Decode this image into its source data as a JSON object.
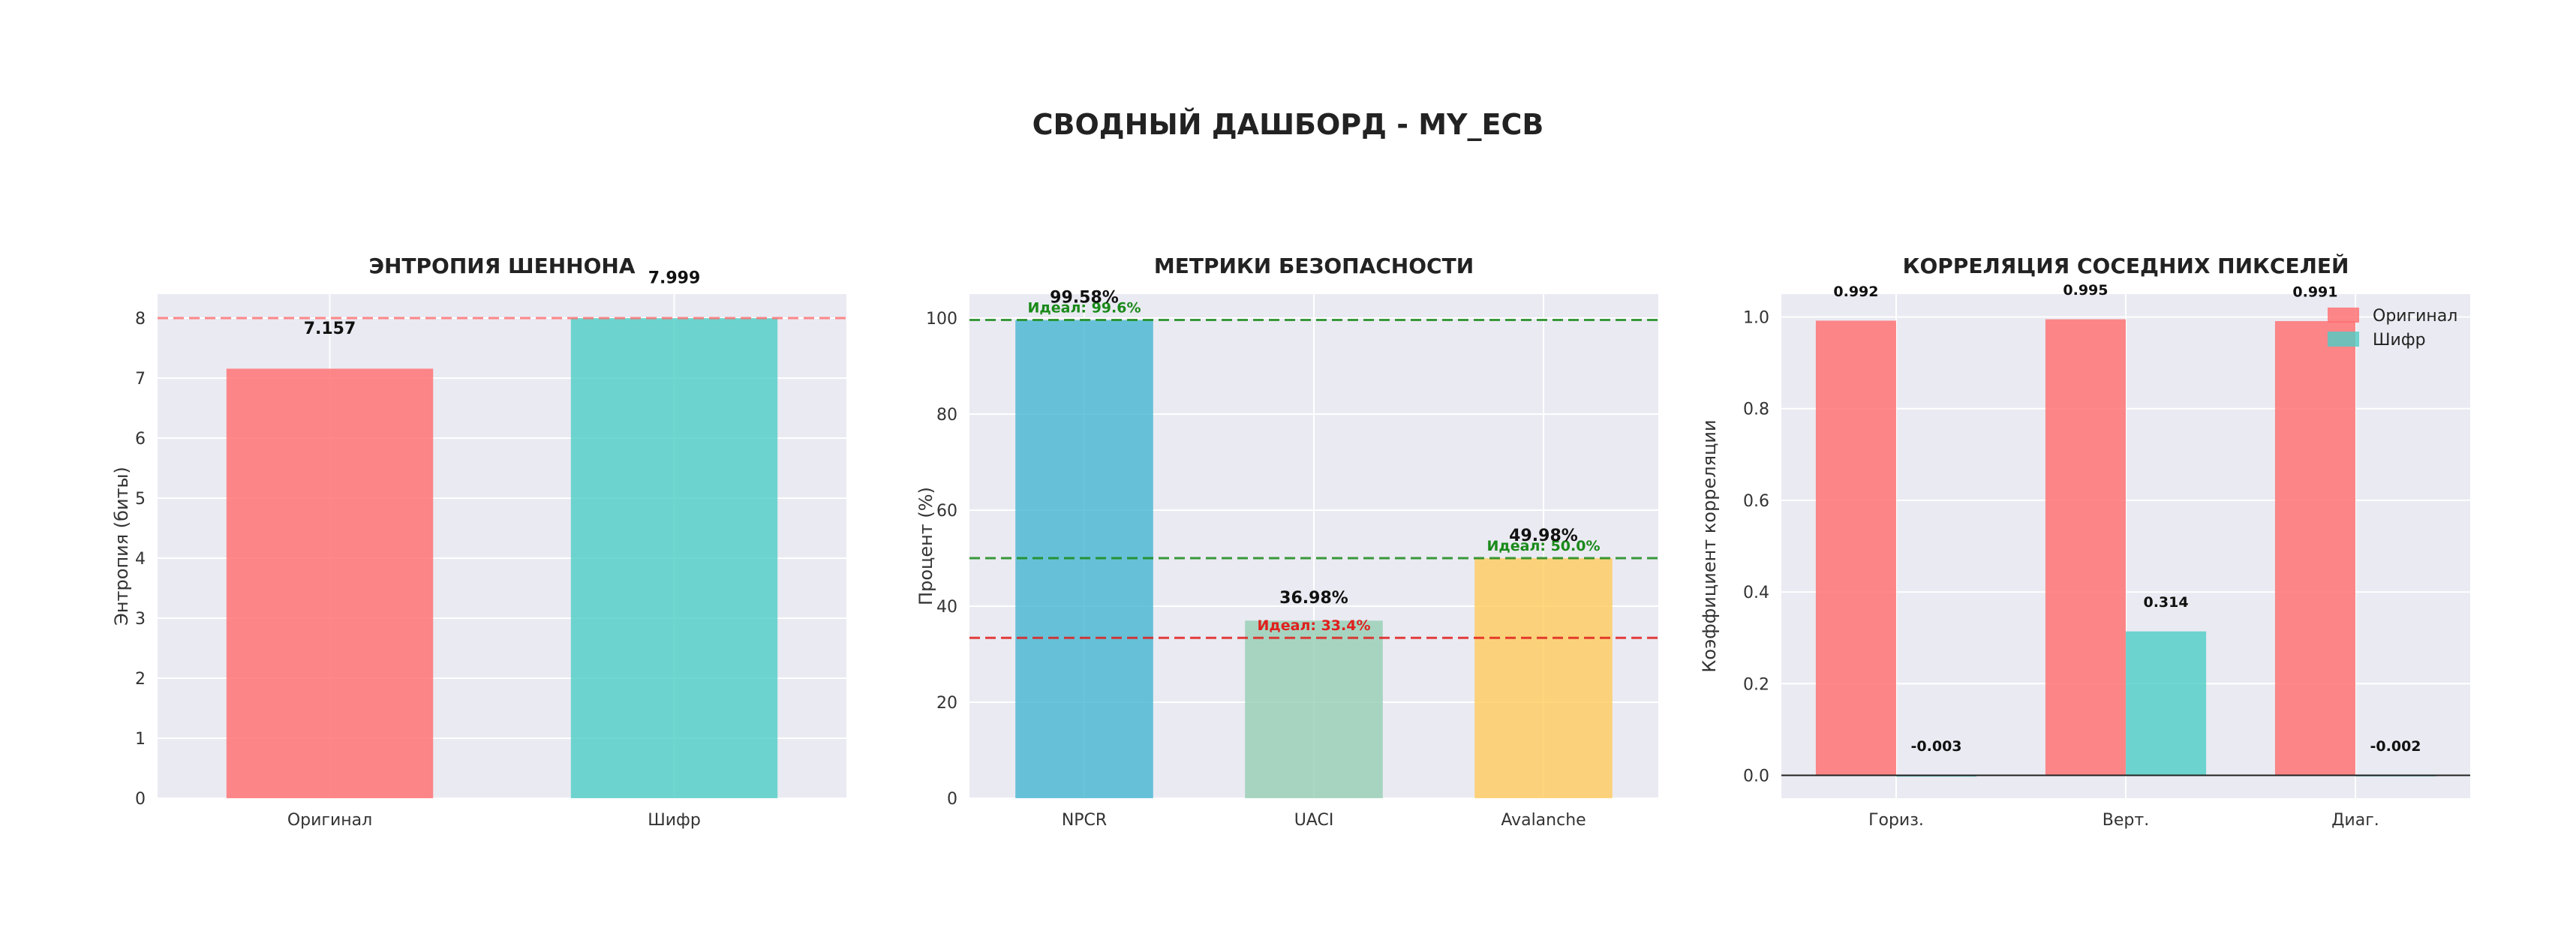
{
  "suptitle": "СВОДНЫЙ ДАШБОРД - MY_ECB",
  "chart_data": [
    {
      "type": "bar",
      "title": "ЭНТРОПИЯ ШЕННОНА",
      "ylabel": "Энтропия (биты)",
      "xlabel": "",
      "categories": [
        "Оригинал",
        "Шифр"
      ],
      "values": [
        7.157,
        7.999
      ],
      "value_labels": [
        "7.157",
        "7.999"
      ],
      "colors": [
        "#FF6B6B",
        "#4ECDC4"
      ],
      "ylim": [
        0,
        8.4
      ],
      "yticks": [
        "0",
        "1",
        "2",
        "3",
        "4",
        "5",
        "6",
        "7",
        "8"
      ],
      "reference_lines": [
        {
          "value": 8,
          "color": "#FF6B6B",
          "label": ""
        }
      ],
      "grid": true
    },
    {
      "type": "bar",
      "title": "МЕТРИКИ БЕЗОПАСНОСТИ",
      "ylabel": "Процент (%)",
      "xlabel": "",
      "categories": [
        "NPCR",
        "UACI",
        "Avalanche"
      ],
      "values": [
        99.58,
        36.98,
        49.98
      ],
      "value_labels": [
        "99.58%",
        "36.98%",
        "49.98%"
      ],
      "colors": [
        "#45B7D1",
        "#96CEB4",
        "#FFCC5C"
      ],
      "ylim": [
        0,
        105
      ],
      "yticks": [
        "0",
        "20",
        "40",
        "60",
        "80",
        "100"
      ],
      "reference_lines": [
        {
          "value": 99.6,
          "color": "#1a8a1a",
          "label": "Идеал: 99.6%",
          "bar": 0
        },
        {
          "value": 50.0,
          "color": "#1a8a1a",
          "label": "Идеал: 50.0%",
          "bar": 2
        },
        {
          "value": 33.4,
          "color": "#e0201d",
          "label": "Идеал: 33.4%",
          "bar": 1
        }
      ],
      "grid": true
    },
    {
      "type": "bar",
      "title": "КОРРЕЛЯЦИЯ СОСЕДНИХ ПИКСЕЛЕЙ",
      "ylabel": "Коэффициент корреляции",
      "xlabel": "",
      "categories": [
        "Гориз.",
        "Верт.",
        "Диаг."
      ],
      "series": [
        {
          "name": "Оригинал",
          "color": "#FF6B6B",
          "values": [
            0.992,
            0.995,
            0.991
          ],
          "value_labels": [
            "0.992",
            "0.995",
            "0.991"
          ]
        },
        {
          "name": "Шифр",
          "color": "#4ECDC4",
          "values": [
            -0.003,
            0.314,
            -0.002
          ],
          "value_labels": [
            "-0.003",
            "0.314",
            "-0.002"
          ]
        }
      ],
      "ylim": [
        -0.05,
        1.05
      ],
      "yticks": [
        "0.0",
        "0.2",
        "0.4",
        "0.6",
        "0.8",
        "1.0"
      ],
      "legend": "top-right",
      "zero_line": true,
      "grid": true
    }
  ]
}
